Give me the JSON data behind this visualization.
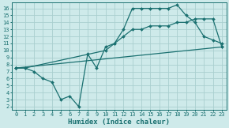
{
  "xlabel": "Humidex (Indice chaleur)",
  "bg_color": "#ceeaea",
  "grid_color": "#aacfcf",
  "line_color": "#1a7070",
  "xlim": [
    -0.5,
    23.5
  ],
  "ylim": [
    1.5,
    16.8
  ],
  "xticks": [
    0,
    1,
    2,
    3,
    4,
    5,
    6,
    7,
    8,
    9,
    10,
    11,
    12,
    13,
    14,
    15,
    16,
    17,
    18,
    19,
    20,
    21,
    22,
    23
  ],
  "yticks": [
    2,
    3,
    4,
    5,
    6,
    7,
    8,
    9,
    10,
    11,
    12,
    13,
    14,
    15,
    16
  ],
  "line1_x": [
    0,
    1,
    2,
    3,
    4,
    5,
    6,
    7,
    8,
    9,
    10,
    11,
    12,
    13,
    14,
    15,
    16,
    17,
    18,
    19,
    20,
    21,
    22,
    23
  ],
  "line1_y": [
    7.5,
    7.5,
    7.0,
    6.0,
    5.5,
    3.0,
    3.5,
    2.0,
    9.5,
    7.5,
    10.5,
    11.0,
    13.0,
    16.0,
    16.0,
    16.0,
    16.0,
    16.0,
    16.5,
    15.0,
    14.0,
    12.0,
    11.5,
    11.0
  ],
  "line2_x": [
    0,
    1,
    10,
    11,
    12,
    13,
    14,
    15,
    16,
    17,
    18,
    19,
    20,
    21,
    22,
    23
  ],
  "line2_y": [
    7.5,
    7.5,
    10.0,
    11.0,
    12.0,
    13.0,
    13.0,
    13.5,
    13.5,
    13.5,
    14.0,
    14.0,
    14.5,
    14.5,
    14.5,
    10.5
  ],
  "line3_x": [
    0,
    23
  ],
  "line3_y": [
    7.5,
    10.5
  ],
  "marker": "D",
  "marker_size": 2,
  "linewidth": 0.9,
  "tick_fontsize": 5.0,
  "xlabel_fontsize": 6.5
}
